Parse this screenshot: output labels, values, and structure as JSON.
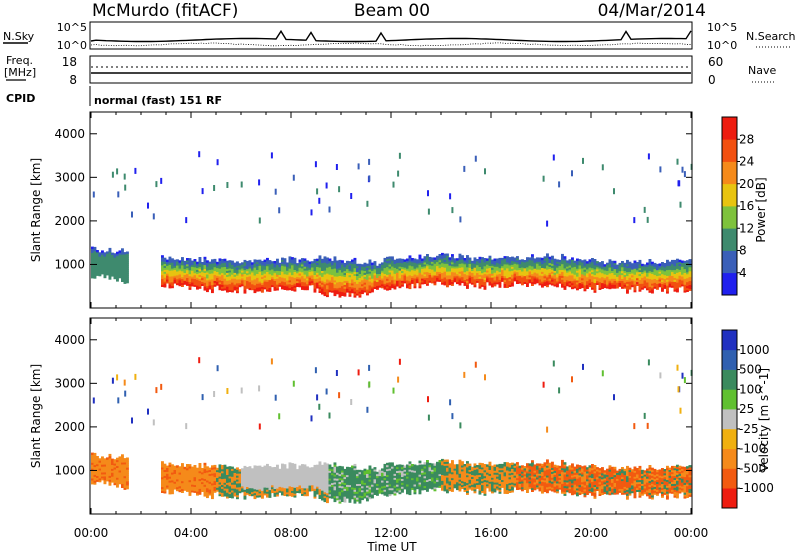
{
  "header": {
    "station": "McMurdo (fitACF)",
    "beam": "Beam 00",
    "date": "04/Mar/2014"
  },
  "status_panels": {
    "nsky_label": "N.Sky",
    "nsearch_label": "N.Search",
    "nsky_ticks": [
      "10^5",
      "10^0"
    ],
    "nsearch_ticks": [
      "10^5",
      "10^0"
    ],
    "freq_label": "Freq.",
    "freq_unit": "[MHz]",
    "freq_ticks": [
      "18",
      "8"
    ],
    "nave_label": "Nave",
    "nave_ticks": [
      "60",
      "0"
    ],
    "cpid_label": "CPID",
    "cpid_text": "normal (fast) 151 RF"
  },
  "chart_data": [
    {
      "type": "heatmap",
      "name": "power",
      "ylabel": "Slant Range [km]",
      "yticks": [
        "1000",
        "2000",
        "3000",
        "4000"
      ],
      "xticks": [
        "00:00",
        "04:00",
        "08:00",
        "12:00",
        "16:00",
        "20:00",
        "00:00"
      ],
      "colorbar_label": "Power [dB]",
      "colorbar_ticks": [
        "4",
        "8",
        "12",
        "16",
        "20",
        "24",
        "28"
      ],
      "colors": [
        "#2020ee",
        "#3a5fb8",
        "#3e8a6e",
        "#7ec23c",
        "#e8c410",
        "#f58a1a",
        "#f25010",
        "#ee1c10"
      ],
      "ylim": [
        0,
        4500
      ],
      "xlim_hours": [
        0,
        24
      ],
      "band_center_km": [
        1100,
        1000,
        900,
        850,
        800,
        780,
        760,
        770,
        800,
        780,
        720,
        700,
        820,
        860,
        900,
        880,
        850,
        870,
        860,
        850,
        800,
        780,
        760,
        770,
        800
      ]
    },
    {
      "type": "heatmap",
      "name": "velocity",
      "ylabel": "Slant Range [km]",
      "yticks": [
        "1000",
        "2000",
        "3000",
        "4000"
      ],
      "xticks": [
        "00:00",
        "04:00",
        "08:00",
        "12:00",
        "16:00",
        "20:00",
        "00:00"
      ],
      "xlabel": "Time UT",
      "colorbar_label": "Velocity [m s^-1]",
      "colorbar_ticks": [
        "1000",
        "500",
        "100",
        "25",
        "-25",
        "-100",
        "-500",
        "-1000"
      ],
      "colors": [
        "#2030c0",
        "#3060b0",
        "#3a8a5e",
        "#60c030",
        "#c0c0c0",
        "#f0b010",
        "#f58a1a",
        "#f25a10",
        "#ee1c10"
      ],
      "ylim": [
        0,
        4500
      ],
      "xlim_hours": [
        0,
        24
      ]
    }
  ]
}
